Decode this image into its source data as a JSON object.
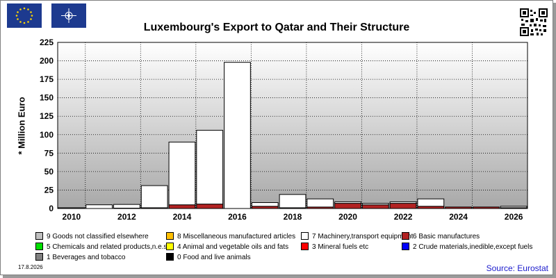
{
  "chart_data": {
    "type": "bar",
    "stacked": true,
    "title": "Luxembourg's Export to Qatar and Their Structure",
    "ylabel": "* Million Euro",
    "xlabel": "",
    "ylim": [
      0,
      225
    ],
    "yticks": [
      0,
      25,
      50,
      75,
      100,
      125,
      150,
      175,
      200,
      225
    ],
    "x_ticks": [
      "2010",
      "2012",
      "2014",
      "2016",
      "2018",
      "2020",
      "2022",
      "2024",
      "2026"
    ],
    "grid": true,
    "legend_position": "bottom",
    "categories": [
      2010,
      2011,
      2012,
      2013,
      2014,
      2015,
      2016,
      2017,
      2018,
      2019,
      2020,
      2021,
      2022,
      2023,
      2024,
      2025,
      2026
    ],
    "series": [
      {
        "name": "0 Food and live animals",
        "color": "#000000",
        "values": [
          0,
          0,
          0,
          0,
          0,
          0,
          0,
          0,
          0,
          0,
          0,
          0,
          0,
          0,
          0,
          0,
          0
        ]
      },
      {
        "name": "6 Basic manufactures",
        "color": "#b22222",
        "values": [
          0,
          0,
          0.5,
          1,
          5,
          6,
          0,
          3,
          1,
          2,
          7,
          5,
          7,
          3,
          2,
          2,
          1
        ]
      },
      {
        "name": "7 Machinery,transport equipment",
        "color": "#ffffff",
        "values": [
          1,
          5,
          5,
          30,
          85,
          100,
          198,
          5,
          18,
          11,
          2,
          2,
          2,
          10,
          0,
          0,
          2
        ]
      }
    ],
    "legend": [
      {
        "label": "9 Goods not classified elsewhere",
        "color": "#c0c0c0"
      },
      {
        "label": "8 Miscellaneous manufactured articles",
        "color": "#ffc000"
      },
      {
        "label": "7 Machinery,transport equipment",
        "color": "#ffffff"
      },
      {
        "label": "6 Basic manufactures",
        "color": "#b22222"
      },
      {
        "label": "5 Chemicals and related products,n.e.s.",
        "color": "#00e000"
      },
      {
        "label": "4 Animal and vegetable oils and fats",
        "color": "#ffff00"
      },
      {
        "label": "3 Mineral fuels etc",
        "color": "#ff0000"
      },
      {
        "label": "2 Crude materials,inedible,except fuels",
        "color": "#0000ff"
      },
      {
        "label": "1 Beverages and tobacco",
        "color": "#808080"
      },
      {
        "label": "0 Food and live animals",
        "color": "#000000"
      }
    ]
  },
  "footer": {
    "date": "17.8.2026",
    "source": "Source: Eurostat"
  },
  "icons": {
    "left_flag": "eu-flag-icon",
    "right_flag": "nato-flag-icon",
    "top_right": "qr-code-icon"
  }
}
